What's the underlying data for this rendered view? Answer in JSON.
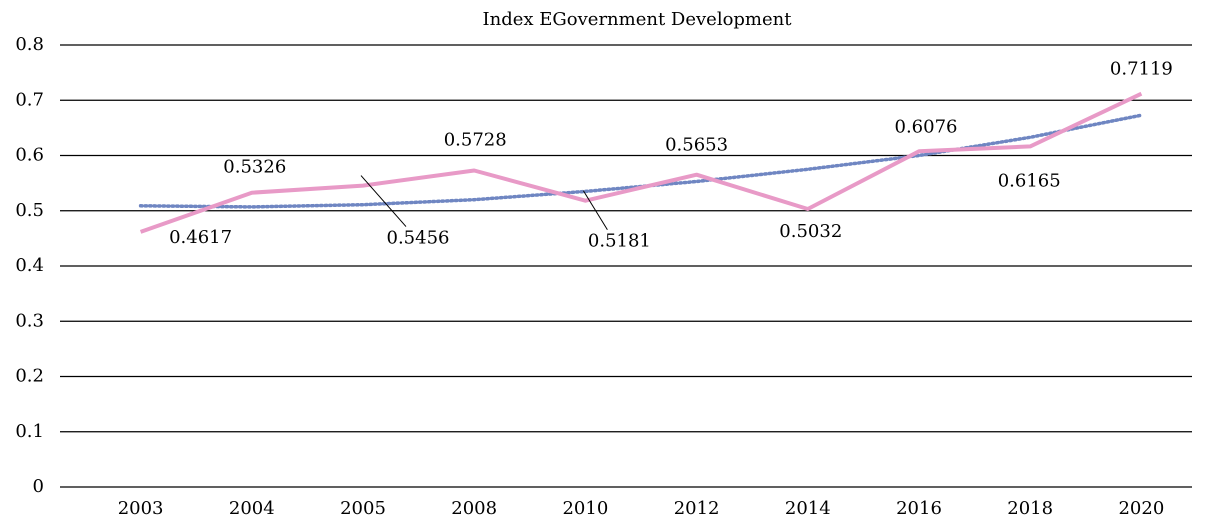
{
  "chart_data": {
    "type": "line",
    "title": "Index EGovernment Development",
    "categories": [
      "2003",
      "2004",
      "2005",
      "2008",
      "2010",
      "2012",
      "2014",
      "2016",
      "2018",
      "2020"
    ],
    "series": [
      {
        "color": "#e89ac7",
        "values": [
          0.4617,
          0.5326,
          0.5456,
          0.5728,
          0.5181,
          0.5653,
          0.5032,
          0.6076,
          0.6165,
          0.7119
        ],
        "data_labels": true
      },
      {
        "color": "#6f86c2",
        "style": "dotted",
        "values": [
          0.509,
          0.507,
          0.511,
          0.52,
          0.535,
          0.553,
          0.575,
          0.6,
          0.633,
          0.673
        ]
      }
    ],
    "ylim": [
      0,
      0.8
    ],
    "yticks": [
      0,
      0.1,
      0.2,
      0.3,
      0.4,
      0.5,
      0.6,
      0.7,
      0.8
    ],
    "grid": true
  }
}
